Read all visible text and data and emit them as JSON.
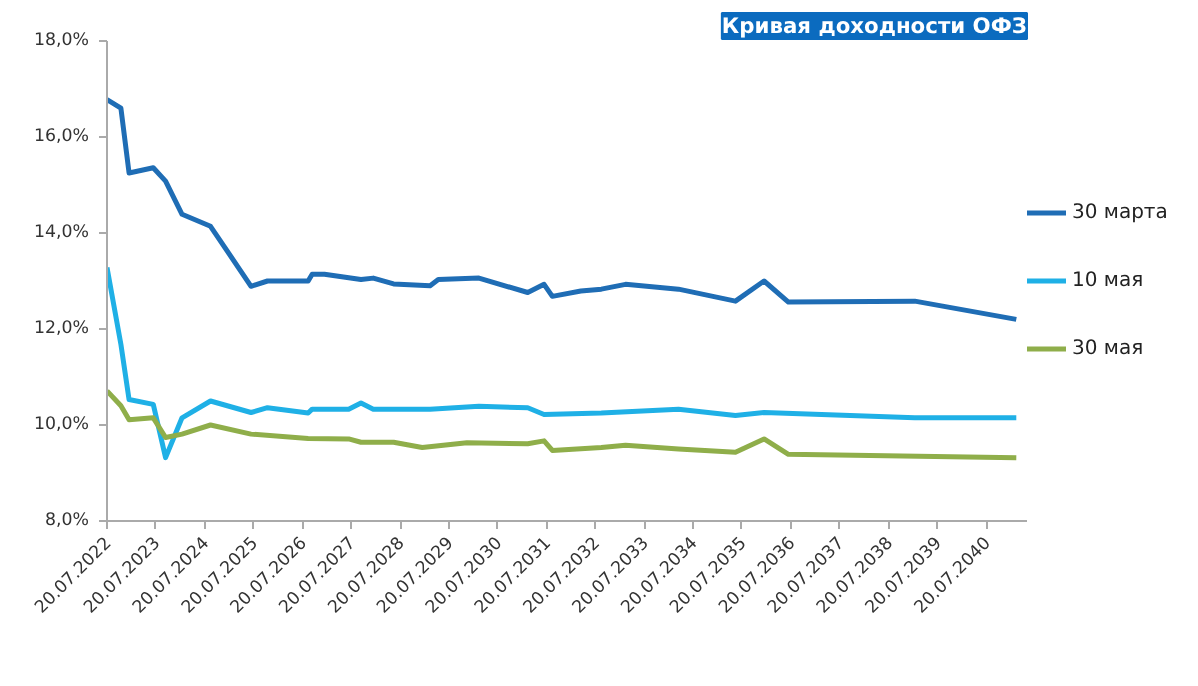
{
  "chart_data": {
    "type": "line",
    "title": "Кривая доходности ОФЗ",
    "xlim": [
      "2022-07-20",
      "2041-05-20"
    ],
    "xticks": [
      {
        "value": "2022-07-20",
        "label": "20.07.2022"
      },
      {
        "value": "2023-07-20",
        "label": "20.07.2023"
      },
      {
        "value": "2024-07-20",
        "label": "20.07.2024"
      },
      {
        "value": "2025-07-20",
        "label": "20.07.2025"
      },
      {
        "value": "2026-07-20",
        "label": "20.07.2026"
      },
      {
        "value": "2027-07-20",
        "label": "20.07.2027"
      },
      {
        "value": "2028-07-20",
        "label": "20.07.2028"
      },
      {
        "value": "2029-07-20",
        "label": "20.07.2029"
      },
      {
        "value": "2030-07-20",
        "label": "20.07.2030"
      },
      {
        "value": "2031-07-20",
        "label": "20.07.2031"
      },
      {
        "value": "2032-07-20",
        "label": "20.07.2032"
      },
      {
        "value": "2033-07-20",
        "label": "20.07.2033"
      },
      {
        "value": "2034-07-20",
        "label": "20.07.2034"
      },
      {
        "value": "2035-07-20",
        "label": "20.07.2035"
      },
      {
        "value": "2036-07-20",
        "label": "20.07.2036"
      },
      {
        "value": "2037-07-20",
        "label": "20.07.2037"
      },
      {
        "value": "2038-07-20",
        "label": "20.07.2038"
      },
      {
        "value": "2039-07-20",
        "label": "20.07.2039"
      },
      {
        "value": "2040-07-20",
        "label": "20.07.2040"
      }
    ],
    "ylim": [
      8,
      18
    ],
    "yticks": [
      {
        "value": 8,
        "label": "8,0%"
      },
      {
        "value": 10,
        "label": "10,0%"
      },
      {
        "value": 12,
        "label": "12,0%"
      },
      {
        "value": 14,
        "label": "14,0%"
      },
      {
        "value": 16,
        "label": "16,0%"
      },
      {
        "value": 18,
        "label": "18,0%"
      }
    ],
    "grid": false,
    "legend": "right",
    "marker": "none",
    "line_style": "solid",
    "series": [
      {
        "name": "30 марта",
        "color": "#1f6db5",
        "x": [
          "2022-07-20",
          "2022-11",
          "2023-01",
          "2023-07",
          "2023-10",
          "2024-02",
          "2024-09",
          "2025-07",
          "2025-11",
          "2026-09",
          "2026-10",
          "2027-01",
          "2027-10",
          "2028-01",
          "2028-06",
          "2029-03",
          "2029-05",
          "2030-03",
          "2031-03",
          "2031-07",
          "2031-09",
          "2032-04",
          "2032-09",
          "2033-03",
          "2034-04",
          "2035-06",
          "2036-01",
          "2036-07",
          "2039-02",
          "2041-03"
        ],
        "values": [
          16.78,
          16.6,
          15.25,
          15.36,
          15.08,
          14.39,
          14.14,
          12.89,
          13.0,
          13.0,
          13.14,
          13.14,
          13.03,
          13.06,
          12.94,
          12.9,
          13.03,
          13.06,
          12.76,
          12.93,
          12.68,
          12.79,
          12.83,
          12.93,
          12.83,
          12.58,
          13.0,
          12.56,
          12.58,
          12.2
        ]
      },
      {
        "name": "10 мая",
        "color": "#1fb0e6",
        "x": [
          "2022-07-20",
          "2022-11",
          "2023-01",
          "2023-07",
          "2023-10",
          "2024-02",
          "2024-09",
          "2025-07",
          "2025-11",
          "2026-09",
          "2026-10",
          "2027-07",
          "2027-10",
          "2028-01",
          "2029-03",
          "2030-03",
          "2031-03",
          "2031-07",
          "2032-09",
          "2034-04",
          "2035-06",
          "2036-01",
          "2039-02",
          "2041-03"
        ],
        "values": [
          13.28,
          11.68,
          10.53,
          10.43,
          9.32,
          10.15,
          10.5,
          10.26,
          10.36,
          10.25,
          10.33,
          10.33,
          10.46,
          10.33,
          10.33,
          10.39,
          10.36,
          10.22,
          10.25,
          10.33,
          10.2,
          10.26,
          10.15,
          10.15
        ]
      },
      {
        "name": "30 мая",
        "color": "#8fae4a",
        "x": [
          "2022-07-20",
          "2022-11",
          "2023-01",
          "2023-07",
          "2023-10",
          "2024-02",
          "2024-09",
          "2025-07",
          "2026-09",
          "2027-07",
          "2027-10",
          "2028-06",
          "2029-01",
          "2029-12",
          "2031-03",
          "2031-07",
          "2031-09",
          "2032-09",
          "2033-03",
          "2034-04",
          "2035-06",
          "2036-01",
          "2036-07",
          "2041-03"
        ],
        "values": [
          10.71,
          10.4,
          10.11,
          10.15,
          9.74,
          9.81,
          10.0,
          9.81,
          9.72,
          9.71,
          9.64,
          9.64,
          9.53,
          9.63,
          9.61,
          9.67,
          9.47,
          9.53,
          9.58,
          9.5,
          9.43,
          9.71,
          9.39,
          9.32
        ]
      }
    ]
  }
}
